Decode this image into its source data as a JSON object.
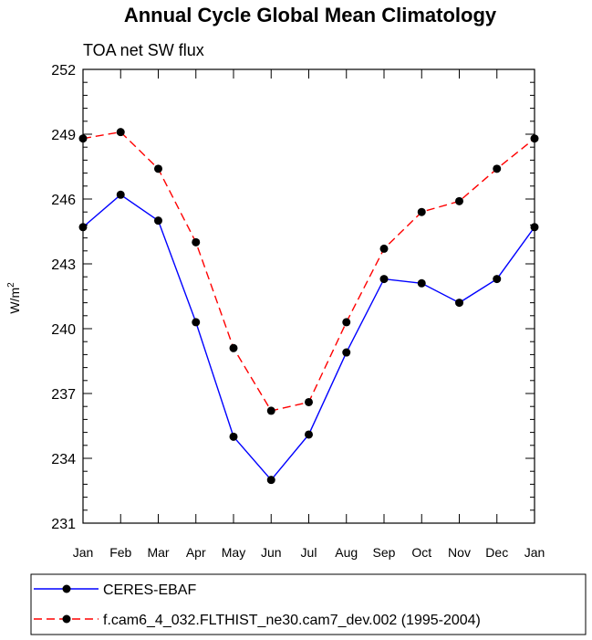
{
  "chart_data": {
    "type": "line",
    "title": "Annual Cycle Global Mean Climatology",
    "subtitle": "TOA net SW flux",
    "xlabel": "",
    "ylabel": "W/m",
    "ylabel_sup": "2",
    "categories": [
      "Jan",
      "Feb",
      "Mar",
      "Apr",
      "May",
      "Jun",
      "Jul",
      "Aug",
      "Sep",
      "Oct",
      "Nov",
      "Dec",
      "Jan"
    ],
    "ylim": [
      231,
      252
    ],
    "yticks": [
      231,
      234,
      237,
      240,
      243,
      246,
      249,
      252
    ],
    "series": [
      {
        "name": "CERES-EBAF",
        "color": "#0000ff",
        "dash": "solid",
        "values": [
          244.7,
          246.2,
          245.0,
          240.3,
          235.0,
          233.0,
          235.1,
          238.9,
          242.3,
          242.1,
          241.2,
          242.3,
          244.7
        ]
      },
      {
        "name": "f.cam6_4_032.FLTHIST_ne30.cam7_dev.002 (1995-2004)",
        "color": "#ff0000",
        "dash": "dashed",
        "values": [
          248.8,
          249.1,
          247.4,
          244.0,
          239.1,
          236.2,
          236.6,
          240.3,
          243.7,
          245.4,
          245.9,
          247.4,
          248.8
        ]
      }
    ],
    "legend_position": "bottom",
    "marker_color": "#000000"
  }
}
